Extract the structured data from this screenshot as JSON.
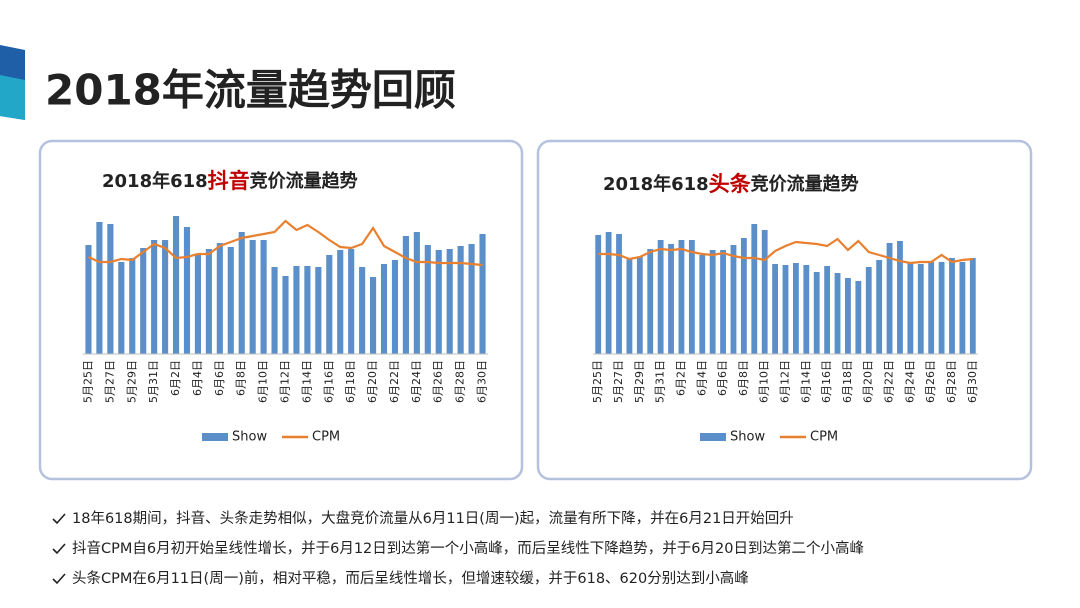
{
  "header": {
    "title": "2018年流量趋势回顾"
  },
  "chart_data": [
    {
      "type": "bar-line",
      "title": [
        "2018年618",
        "抖音",
        "竞价流量趋势"
      ],
      "title_color": "#222222",
      "title_highlight_color": "#c00000",
      "categories": [
        "5月25日",
        null,
        "5月27日",
        null,
        "5月29日",
        null,
        "5月31日",
        null,
        "6月2日",
        null,
        "6月4日",
        null,
        "6月6日",
        null,
        "6月8日",
        null,
        "6月10日",
        null,
        "6月12日",
        null,
        "6月14日",
        null,
        "6月16日",
        null,
        "6月18日",
        null,
        "6月20日",
        null,
        "6月22日",
        null,
        "6月24日",
        null,
        "6月26日",
        null,
        "6月28日",
        null,
        "6月30日"
      ],
      "ylim": [
        0,
        150
      ],
      "legend": "bottom",
      "series": [
        {
          "name": "Show",
          "kind": "bar",
          "color": "#5b8fc9",
          "values": [
            109,
            132,
            130,
            92,
            96,
            106,
            114,
            114,
            138,
            127,
            100,
            105,
            111,
            107,
            122,
            114,
            114,
            87,
            78,
            88,
            88,
            87,
            99,
            104,
            105,
            87,
            77,
            90,
            94,
            118,
            122,
            109,
            104,
            105,
            108,
            110,
            120
          ]
        },
        {
          "name": "CPM",
          "kind": "line",
          "color": "#e8802f",
          "values": [
            97,
            92,
            92,
            95,
            94,
            102,
            110,
            106,
            96,
            97,
            100,
            100,
            108,
            112,
            116,
            118,
            120,
            122,
            133,
            124,
            129,
            122,
            114,
            107,
            106,
            110,
            126,
            108,
            102,
            96,
            92,
            92,
            91,
            91,
            91,
            90,
            89
          ]
        }
      ]
    },
    {
      "type": "bar-line",
      "title": [
        "2018年618",
        "头条",
        "竞价流量趋势"
      ],
      "title_color": "#222222",
      "title_highlight_color": "#c00000",
      "categories": [
        "5月25日",
        null,
        "5月27日",
        null,
        "5月29日",
        null,
        "5月31日",
        null,
        "6月2日",
        null,
        "6月4日",
        null,
        "6月6日",
        null,
        "6月8日",
        null,
        "6月10日",
        null,
        "6月12日",
        null,
        "6月14日",
        null,
        "6月16日",
        null,
        "6月18日",
        null,
        "6月20日",
        null,
        "6月22日",
        null,
        "6月24日",
        null,
        "6月26日",
        null,
        "6月28日",
        null,
        "6月30日"
      ],
      "ylim": [
        0,
        150
      ],
      "legend": "bottom",
      "series": [
        {
          "name": "Show",
          "kind": "bar",
          "color": "#5b8fc9",
          "values": [
            119,
            122,
            120,
            96,
            97,
            105,
            114,
            110,
            114,
            114,
            99,
            104,
            104,
            109,
            116,
            130,
            124,
            90,
            89,
            91,
            89,
            82,
            88,
            81,
            76,
            73,
            87,
            94,
            111,
            113,
            91,
            90,
            92,
            92,
            96,
            92,
            96
          ]
        },
        {
          "name": "CPM",
          "kind": "line",
          "color": "#e8802f",
          "values": [
            100,
            100,
            99,
            95,
            97,
            102,
            105,
            104,
            105,
            102,
            100,
            99,
            101,
            98,
            96,
            96,
            94,
            103,
            108,
            112,
            111,
            110,
            108,
            115,
            104,
            113,
            102,
            99,
            96,
            93,
            91,
            92,
            92,
            99,
            92,
            94,
            95
          ]
        }
      ]
    }
  ],
  "notes": [
    "18年618期间，抖音、头条走势相似，大盘竞价流量从6月11日(周一)起，流量有所下降，并在6月21日开始回升",
    "抖音CPM自6月初开始呈线性增长，并于6月12日到达第一个小高峰，而后呈线性下降趋势，并于6月20日到达第二个小高峰",
    "头条CPM在6月11日(周一)前，相对平稳，而后呈线性增长，但增速较缓，并于618、620分别达到小高峰"
  ]
}
